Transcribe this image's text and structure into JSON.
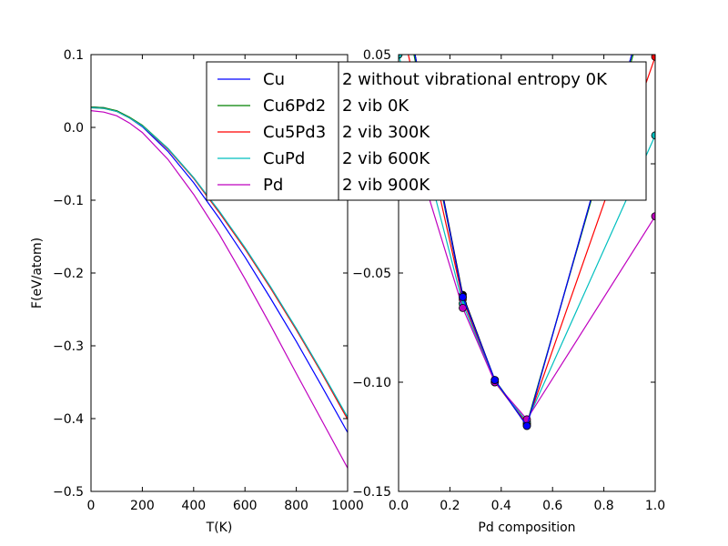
{
  "chart_data": [
    {
      "type": "line",
      "xlabel": "T(K)",
      "ylabel": "F(eV/atom)",
      "xlim": [
        0,
        1000
      ],
      "ylim": [
        -0.5,
        0.1
      ],
      "xticks": [
        0,
        200,
        400,
        600,
        800,
        1000
      ],
      "xtick_labels": [
        "0",
        "200",
        "400",
        "600",
        "800",
        "1000"
      ],
      "yticks": [
        0.1,
        0.0,
        -0.1,
        -0.2,
        -0.3,
        -0.4,
        -0.5
      ],
      "ytick_labels": [
        "0.1",
        "0.0",
        "−0.1",
        "−0.2",
        "−0.3",
        "−0.4",
        "−0.5"
      ],
      "legend_position": "upper right",
      "series": [
        {
          "name": "Cu",
          "color": "#0000ff",
          "x": [
            0,
            50,
            100,
            150,
            200,
            300,
            400,
            500,
            600,
            700,
            800,
            900,
            1000
          ],
          "y": [
            0.028,
            0.027,
            0.022,
            0.013,
            0.001,
            -0.033,
            -0.076,
            -0.125,
            -0.178,
            -0.235,
            -0.294,
            -0.356,
            -0.419
          ]
        },
        {
          "name": "Cu6Pd2",
          "color": "#008000",
          "x": [
            0,
            50,
            100,
            150,
            200,
            300,
            400,
            500,
            600,
            700,
            800,
            900,
            1000
          ],
          "y": [
            0.028,
            0.027,
            0.023,
            0.014,
            0.003,
            -0.029,
            -0.069,
            -0.116,
            -0.166,
            -0.22,
            -0.277,
            -0.337,
            -0.4
          ]
        },
        {
          "name": "Cu5Pd3",
          "color": "#ff0000",
          "x": [
            0,
            50,
            100,
            150,
            200,
            300,
            400,
            500,
            600,
            700,
            800,
            900,
            1000
          ],
          "y": [
            0.027,
            0.026,
            0.022,
            0.013,
            0.002,
            -0.03,
            -0.07,
            -0.117,
            -0.167,
            -0.221,
            -0.278,
            -0.338,
            -0.401
          ]
        },
        {
          "name": "CuPd",
          "color": "#00bfbf",
          "x": [
            0,
            50,
            100,
            150,
            200,
            300,
            400,
            500,
            600,
            700,
            800,
            900,
            1000
          ],
          "y": [
            0.027,
            0.026,
            0.022,
            0.013,
            0.002,
            -0.029,
            -0.069,
            -0.115,
            -0.165,
            -0.219,
            -0.276,
            -0.336,
            -0.398
          ]
        },
        {
          "name": "Pd",
          "color": "#bf00bf",
          "x": [
            0,
            50,
            100,
            150,
            200,
            300,
            400,
            500,
            600,
            700,
            800,
            900,
            1000
          ],
          "y": [
            0.023,
            0.021,
            0.016,
            0.006,
            -0.007,
            -0.044,
            -0.092,
            -0.147,
            -0.208,
            -0.272,
            -0.338,
            -0.403,
            -0.468
          ]
        }
      ]
    },
    {
      "type": "line",
      "xlabel": "Pd composition",
      "ylabel": "",
      "xlim": [
        0.0,
        1.0
      ],
      "ylim": [
        -0.15,
        0.05
      ],
      "xticks": [
        0.0,
        0.2,
        0.4,
        0.6,
        0.8,
        1.0
      ],
      "xtick_labels": [
        "0.0",
        "0.2",
        "0.4",
        "0.6",
        "0.8",
        "1.0"
      ],
      "yticks": [
        0.05,
        0.0,
        -0.05,
        -0.1,
        -0.15
      ],
      "ytick_labels": [
        "0.05",
        "0.00",
        "−0.05",
        "−0.10",
        "−0.15"
      ],
      "markers": "circle",
      "legend_position": "upper right",
      "series": [
        {
          "name": "2 without vibrational entropy 0K",
          "color": "#000000",
          "x": [
            0.0,
            0.25,
            0.375,
            0.5,
            1.0
          ],
          "y": [
            0.088,
            -0.06,
            -0.099,
            -0.12,
            0.088
          ]
        },
        {
          "name": "2 vib 0K",
          "color": "#008000",
          "x": [
            0.0,
            0.25,
            0.375,
            0.5,
            1.0
          ],
          "y": [
            0.085,
            -0.061,
            -0.099,
            -0.119,
            0.085
          ]
        },
        {
          "name": "2 vib 300K",
          "color": "#ff0000",
          "x": [
            0.0,
            0.25,
            0.375,
            0.5,
            1.0
          ],
          "y": [
            0.07,
            -0.062,
            -0.1,
            -0.119,
            0.049
          ]
        },
        {
          "name": "2 vib 600K",
          "color": "#00bfbf",
          "x": [
            0.0,
            0.25,
            0.375,
            0.5,
            1.0
          ],
          "y": [
            0.05,
            -0.064,
            -0.1,
            -0.118,
            0.013
          ]
        },
        {
          "name": "2 vib 900K",
          "color": "#bf00bf",
          "x": [
            0.0,
            0.25,
            0.375,
            0.5,
            1.0
          ],
          "y": [
            0.03,
            -0.066,
            -0.1,
            -0.117,
            -0.024
          ]
        },
        {
          "name": "",
          "color": "#0000ff",
          "x": [
            0.0,
            0.25,
            0.375,
            0.5,
            1.0
          ],
          "y": [
            0.088,
            -0.061,
            -0.099,
            -0.12,
            0.088
          ]
        }
      ]
    }
  ]
}
